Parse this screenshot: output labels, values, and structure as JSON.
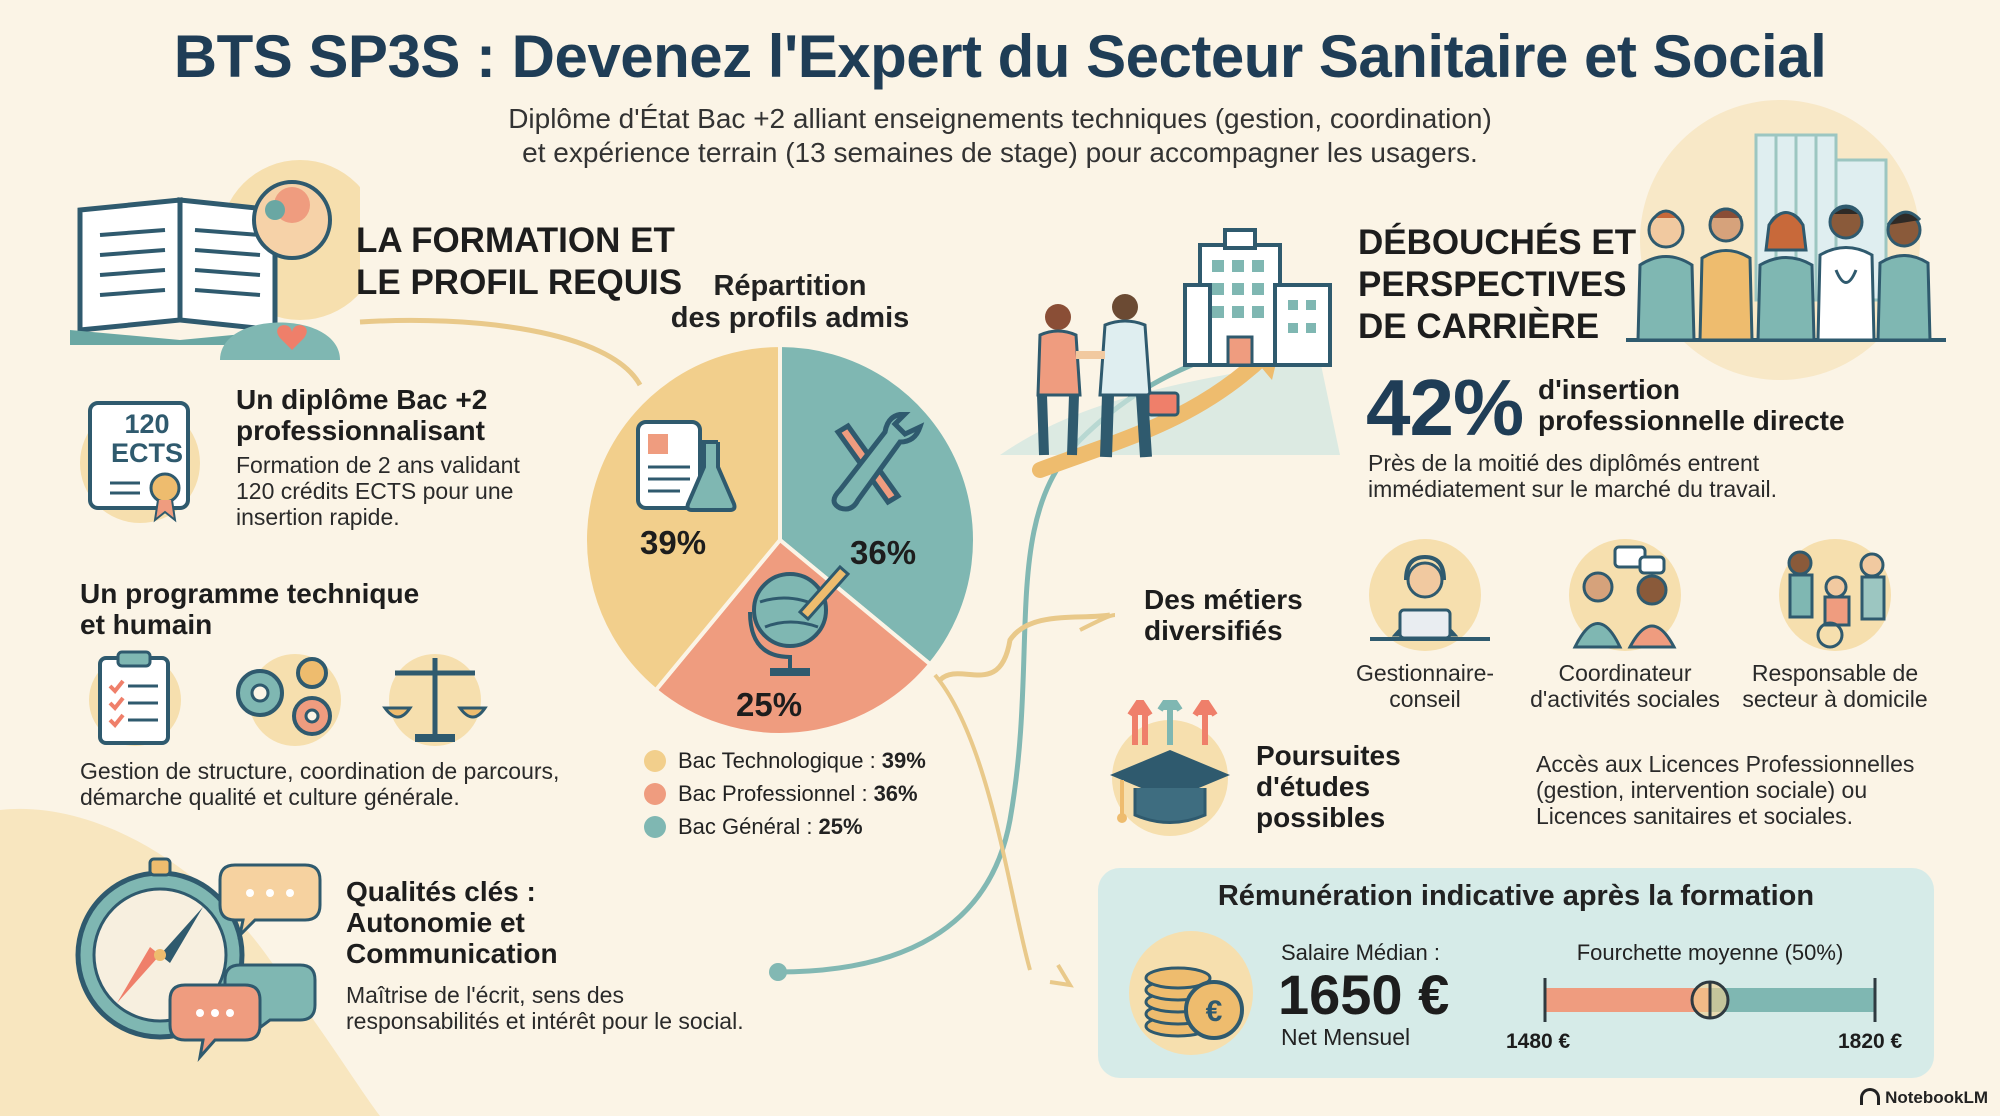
{
  "header": {
    "title": "BTS SP3S : Devenez l'Expert du Secteur Sanitaire et Social",
    "subtitle_line1": "Diplôme d'État Bac +2 alliant enseignements techniques (gestion, coordination)",
    "subtitle_line2": "et expérience terrain (13 semaines de stage) pour accompagner les usagers."
  },
  "formation": {
    "title_line1": "LA FORMATION ET",
    "title_line2": "LE PROFIL REQUIS",
    "ects_badge_line1": "120",
    "ects_badge_line2": "ECTS",
    "diplome_title_line1": "Un diplôme Bac +2",
    "diplome_title_line2": "professionnalisant",
    "diplome_text_line1": "Formation de 2 ans validant",
    "diplome_text_line2": "120 crédits ECTS pour une",
    "diplome_text_line3": "insertion rapide.",
    "programme_title_line1": "Un programme technique",
    "programme_title_line2": "et humain",
    "programme_text_line1": "Gestion de structure, coordination de parcours,",
    "programme_text_line2": "démarche qualité et culture générale.",
    "qualites_title_line1": "Qualités clés :",
    "qualites_title_line2": "Autonomie et",
    "qualites_title_line3": "Communication",
    "qualites_text_line1": "Maîtrise de l'écrit, sens des",
    "qualites_text_line2": "responsabilités et intérêt pour le social."
  },
  "chart_data": {
    "type": "pie",
    "title_line1": "Répartition",
    "title_line2": "des profils admis",
    "slices": [
      {
        "label": "Bac Technologique",
        "value": 39,
        "display": "39%",
        "legend_value": "39%",
        "color": "#f2cf8c"
      },
      {
        "label": "Bac Professionnel",
        "value": 36,
        "display": "36%",
        "legend_value": "36%",
        "color": "#7fb7b2"
      },
      {
        "label": "Bac Général",
        "value": 25,
        "display": "25%",
        "legend_value": "25%",
        "color": "#ef9c7f"
      }
    ]
  },
  "debouches": {
    "title_line1": "DÉBOUCHÉS ET",
    "title_line2": "PERSPECTIVES",
    "title_line3": "DE CARRIÈRE",
    "insertion_value": "42%",
    "insertion_label_line1": "d'insertion",
    "insertion_label_line2": "professionnelle directe",
    "insertion_text_line1": "Près de la moitié des diplômés entrent",
    "insertion_text_line2": "immédiatement sur le marché du travail.",
    "metiers_title_line1": "Des métiers",
    "metiers_title_line2": "diversifiés",
    "metiers": [
      {
        "line1": "Gestionnaire-",
        "line2": "conseil"
      },
      {
        "line1": "Coordinateur",
        "line2": "d'activités sociales"
      },
      {
        "line1": "Responsable de",
        "line2": "secteur à domicile"
      }
    ],
    "poursuites_title_line1": "Poursuites",
    "poursuites_title_line2": "d'études",
    "poursuites_title_line3": "possibles",
    "poursuites_text_line1": "Accès aux Licences Professionnelles",
    "poursuites_text_line2": "(gestion, intervention sociale) ou",
    "poursuites_text_line3": "Licences sanitaires et sociales."
  },
  "salary": {
    "title": "Rémunération indicative après la formation",
    "median_label": "Salaire Médian :",
    "median_value": "1650 €",
    "median_unit": "Net Mensuel",
    "range_label": "Fourchette moyenne (50%)",
    "range_min": "1480 €",
    "range_max": "1820 €",
    "range_min_value": 1480,
    "range_max_value": 1820,
    "median_numeric": 1650
  },
  "footer": {
    "brand": "NotebookLM"
  },
  "colors": {
    "navy": "#1f3d56",
    "teal": "#7fb7b2",
    "coral": "#ef9c7f",
    "sand": "#f2cf8c",
    "background": "#fbf4e6"
  }
}
